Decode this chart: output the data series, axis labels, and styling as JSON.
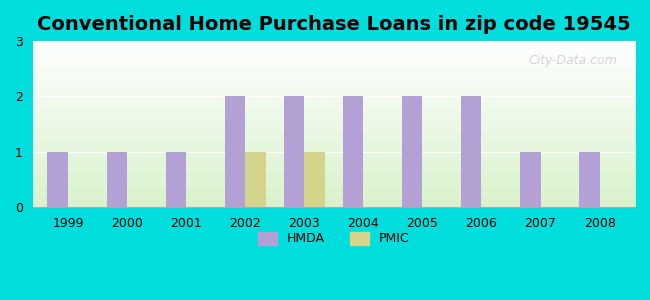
{
  "title": "Conventional Home Purchase Loans in zip code 19545",
  "years": [
    1999,
    2000,
    2001,
    2002,
    2003,
    2004,
    2005,
    2006,
    2007,
    2008
  ],
  "hmda_values": [
    1,
    1,
    1,
    2,
    2,
    2,
    2,
    2,
    1,
    1
  ],
  "pmic_values": [
    0,
    0,
    0,
    1,
    1,
    0,
    0,
    0,
    0,
    0
  ],
  "hmda_color": "#b3a0d4",
  "pmic_color": "#d4d48a",
  "background_outer": "#00dddd",
  "ylim": [
    0,
    3
  ],
  "yticks": [
    0,
    1,
    2,
    3
  ],
  "bar_width": 0.35,
  "title_fontsize": 14,
  "legend_labels": [
    "HMDA",
    "PMIC"
  ],
  "watermark": "City-Data.com"
}
